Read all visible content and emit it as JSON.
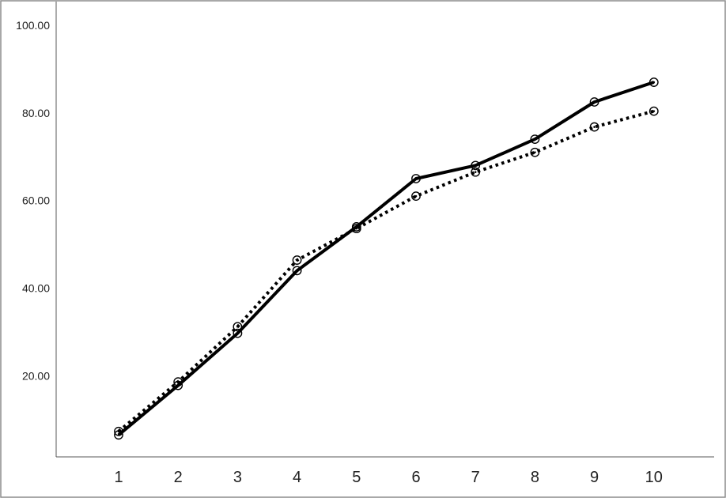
{
  "chart_data": {
    "type": "line",
    "x": [
      1,
      2,
      3,
      4,
      5,
      6,
      7,
      8,
      9,
      10
    ],
    "x_tick_labels": [
      "1",
      "2",
      "3",
      "4",
      "5",
      "6",
      "7",
      "8",
      "9",
      "10"
    ],
    "y_tick_labels": [
      "20.00",
      "40.00",
      "60.00",
      "80.00",
      "100.00"
    ],
    "y_ticks": [
      20,
      40,
      60,
      80,
      100
    ],
    "ylim": [
      0,
      100
    ],
    "grid": false,
    "legend": "none",
    "marker": "open-circle",
    "color": "#000000",
    "series": [
      {
        "line_style": "solid",
        "values": [
          6.5,
          17.8,
          29.7,
          44.0,
          54.0,
          65.0,
          68.0,
          74.0,
          82.5,
          87.0
        ]
      },
      {
        "line_style": "dotted",
        "values": [
          7.3,
          18.6,
          31.2,
          46.4,
          53.6,
          61.0,
          66.5,
          71.0,
          76.8,
          80.4
        ]
      }
    ]
  }
}
